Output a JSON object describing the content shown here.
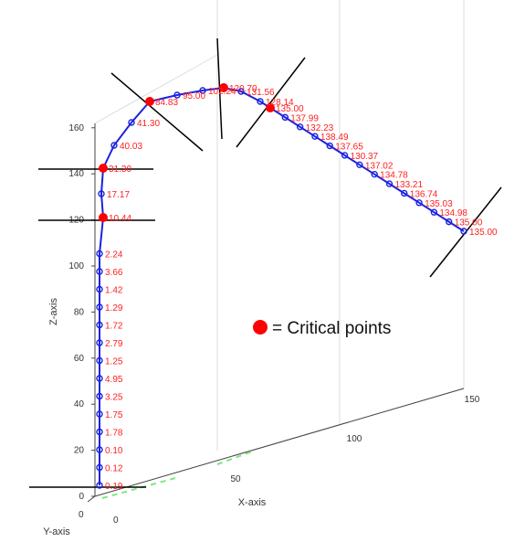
{
  "chart_data": {
    "type": "line",
    "title": "",
    "xlabel": "X-axis",
    "ylabel": "Y-axis",
    "zlabel": "Z-axis",
    "z_ticks": [
      "0",
      "20",
      "40",
      "60",
      "80",
      "100",
      "120",
      "140",
      "160"
    ],
    "x_ticks": [
      "50",
      "100",
      "150"
    ],
    "y_ticks": [
      "0",
      "0"
    ],
    "grid": true,
    "legend": {
      "marker_color": "#ff0000",
      "text": "= Critical points",
      "placement": "center-right"
    },
    "series": [
      {
        "line_color": "#1a22e0",
        "marker_color": "#1a22e0",
        "label_color": "#ff2020",
        "critical_color": "#ff0000",
        "point_labels": [
          "0.19",
          "0.12",
          "0.10",
          "1.78",
          "1.75",
          "3.25",
          "4.95",
          "1.25",
          "2.79",
          "1.72",
          "1.29",
          "1.42",
          "3.66",
          "2.24",
          "10.44",
          "17.17",
          "31.30",
          "40.03",
          "41.30",
          "84.83",
          "95.00",
          "102.24",
          "120.70",
          "131.56",
          "128.14",
          "135.00",
          "137.99",
          "132.23",
          "138.49",
          "137.65",
          "130.37",
          "137.02",
          "134.78",
          "133.21",
          "136.74",
          "135.03",
          "134.98",
          "135.00",
          "135.00"
        ],
        "critical_indices": [
          14,
          16,
          19,
          22,
          25
        ]
      }
    ]
  }
}
